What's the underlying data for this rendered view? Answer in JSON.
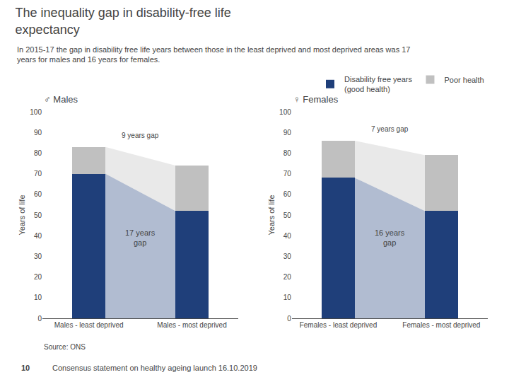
{
  "title": "The inequality gap in disability-free life\nexpectancy",
  "subtitle": "In 2015-17 the gap in disability free life years between those in the least deprived and most deprived areas was 17\nyears for males and 16 years for females.",
  "annotations": [
    "Source: ONS",
    "10",
    "Consensus statement on healthy ageing launch 16.10.2019"
  ],
  "chart_data": [
    {
      "type": "bar",
      "title": "♂ Males",
      "categories": [
        "Males - least deprived",
        "Males - most deprived"
      ],
      "series": [
        {
          "name": "Disability free years\n(good health)",
          "color": "#1F3F7A",
          "values": [
            70,
            52
          ]
        },
        {
          "name": "Poor health",
          "color": "#C0C0C0",
          "values": [
            13,
            22
          ]
        }
      ],
      "stacked": true,
      "ylabel": "Years of life",
      "ylim": [
        0,
        100
      ],
      "yticks": [
        0,
        10,
        20,
        30,
        40,
        50,
        60,
        70,
        80,
        90,
        100
      ],
      "grid": false,
      "legend": "upper right",
      "annotations": [
        "17 years\ngap",
        "9 years gap"
      ]
    },
    {
      "type": "bar",
      "title": "♀ Females",
      "categories": [
        "Females - least deprived",
        "Females - most deprived"
      ],
      "series": [
        {
          "name": "Disability free years\n(good health)",
          "color": "#1F3F7A",
          "values": [
            68,
            52
          ]
        },
        {
          "name": "Poor health",
          "color": "#C0C0C0",
          "values": [
            18,
            27
          ]
        }
      ],
      "stacked": true,
      "ylabel": "Years of life",
      "ylim": [
        0,
        100
      ],
      "yticks": [
        0,
        10,
        20,
        30,
        40,
        50,
        60,
        70,
        80,
        90,
        100
      ],
      "grid": false,
      "annotations": [
        "16 years\ngap",
        "7 years gap"
      ]
    }
  ]
}
